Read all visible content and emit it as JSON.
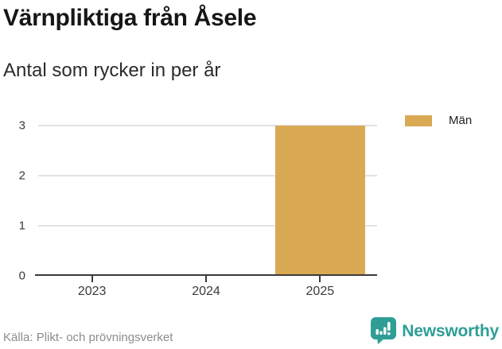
{
  "chart_data": {
    "type": "bar",
    "title": "Värnpliktiga från Åsele",
    "subtitle": "Antal som rycker in per år",
    "categories": [
      "2023",
      "2024",
      "2025"
    ],
    "series": [
      {
        "name": "Män",
        "color": "#D9A953",
        "values": [
          0,
          0,
          3
        ]
      }
    ],
    "xlabel": "",
    "ylabel": "",
    "ylim": [
      0,
      3
    ],
    "yticks": [
      0,
      1,
      2,
      3
    ],
    "grid": true,
    "legend_position": "top-right"
  },
  "footer": {
    "source": "Källa: Plikt- och prövningsverket"
  },
  "brand": {
    "name": "Newsworthy",
    "color": "#2F9E96"
  },
  "colors": {
    "bar": "#D9A953",
    "grid": "#E2E2E2",
    "axis": "#3B3B3B",
    "tick_text": "#3A3A3A",
    "title": "#161616",
    "subtitle": "#2B2B2B",
    "source_text": "#8C8C8C",
    "brand": "#2F9E96",
    "background": "#FFFFFF"
  }
}
